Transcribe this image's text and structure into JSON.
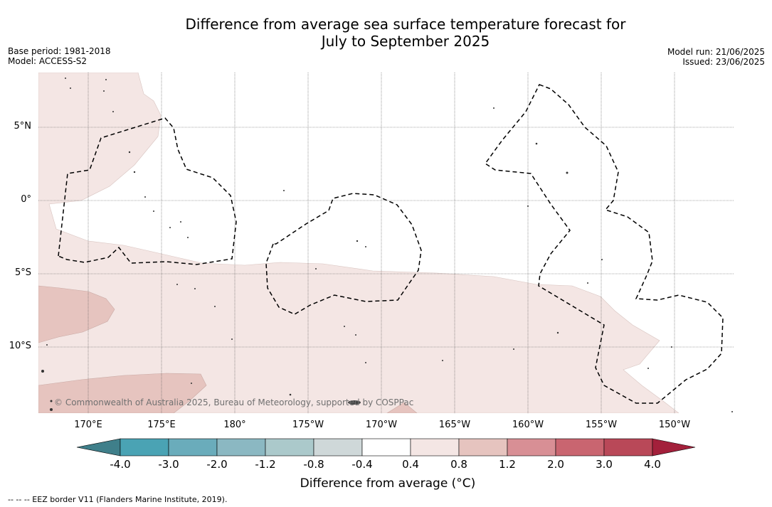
{
  "title": {
    "line1": "Difference from average sea surface temperature forecast for",
    "line2": "July to September 2025"
  },
  "meta_left": {
    "base_period": "Base period: 1981-2018",
    "model": "Model: ACCESS-S2"
  },
  "meta_right": {
    "model_run": "Model run: 21/06/2025",
    "issued": "Issued: 23/06/2025"
  },
  "map": {
    "lat_labels": [
      "5°N",
      "0°",
      "5°S",
      "10°S"
    ],
    "lon_labels": [
      "170°E",
      "175°E",
      "180°",
      "175°W",
      "170°W",
      "165°W",
      "160°W",
      "155°W",
      "150°W"
    ],
    "copyright": "© Commonwealth of Australia 2025, Bureau of Meteorology, supported by COSPPac"
  },
  "colorbar": {
    "ticks": [
      "-4.0",
      "-3.0",
      "-2.0",
      "-1.2",
      "-0.8",
      "-0.4",
      "0.4",
      "0.8",
      "1.2",
      "2.0",
      "3.0",
      "4.0"
    ],
    "colors": [
      "#4aa3b4",
      "#6aacbb",
      "#8bb8c2",
      "#abc9cb",
      "#cfd8d9",
      "#ffffff",
      "#f4e6e4",
      "#e6c4bf",
      "#d88f95",
      "#c96570",
      "#b94858"
    ],
    "under_color": "#3f7f8a",
    "over_color": "#a3203b",
    "label": "Difference from average (°C)"
  },
  "footnote": "--  --  -- EEZ border V11 (Flanders Marine Institute, 2019)."
}
